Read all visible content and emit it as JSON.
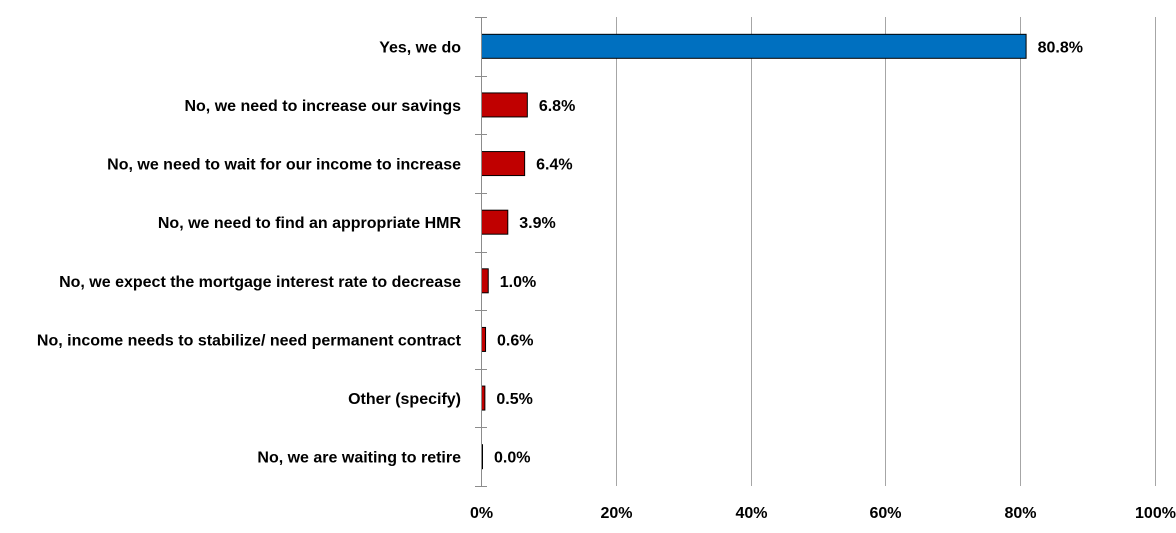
{
  "chart_data": {
    "type": "bar",
    "orientation": "horizontal",
    "title": "",
    "xlabel": "",
    "ylabel": "",
    "categories": [
      "Yes, we do",
      "No, we  need to increase our savings",
      "No, we  need to wait for our income to increase",
      "No, we  need to find an appropriate HMR",
      "No, we  expect the mortgage interest rate to decrease",
      "No, income needs to stabilize/ need permanent contract",
      "Other (specify)",
      "No, we are waiting to retire"
    ],
    "values": [
      80.8,
      6.8,
      6.4,
      3.9,
      1.0,
      0.6,
      0.5,
      0.0
    ],
    "value_labels": [
      "80.8%",
      "6.8%",
      "6.4%",
      "3.9%",
      "1.0%",
      "0.6%",
      "0.5%",
      "0.0%"
    ],
    "bar_colors": [
      "#0070c0",
      "#c00000",
      "#c00000",
      "#c00000",
      "#c00000",
      "#c00000",
      "#c00000",
      "#c00000"
    ],
    "xlim": [
      0,
      100
    ],
    "x_ticks": [
      0,
      20,
      40,
      60,
      80,
      100
    ],
    "x_tick_labels": [
      "0%",
      "20%",
      "40%",
      "60%",
      "80%",
      "100%"
    ],
    "grid": true,
    "legend": false
  }
}
